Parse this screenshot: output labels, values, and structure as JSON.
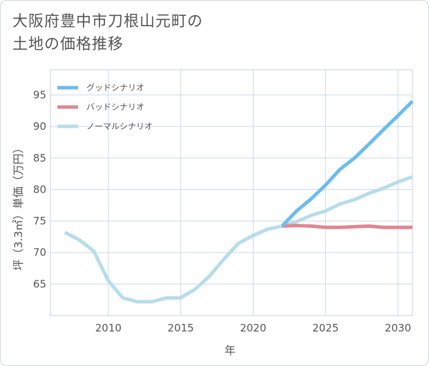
{
  "title_lines": [
    "大阪府豊中市刀根山元町の",
    "土地の価格推移"
  ],
  "chart_data": {
    "type": "line",
    "xlabel": "年",
    "ylabel": "坪（3.3㎡）単価（万円）",
    "xlim": [
      2006,
      2031
    ],
    "ylim": [
      60,
      99
    ],
    "xticks": [
      2010,
      2015,
      2020,
      2025,
      2030
    ],
    "yticks": [
      65,
      70,
      75,
      80,
      85,
      90,
      95
    ],
    "grid": true,
    "legend_position": "top-left",
    "series": [
      {
        "name": "グッドシナリオ",
        "color": "#6bbcee",
        "x": [
          2022,
          2023,
          2024,
          2025,
          2026,
          2027,
          2028,
          2029,
          2030,
          2031
        ],
        "y": [
          74.2,
          76.6,
          78.5,
          80.7,
          83.2,
          85.0,
          87.2,
          89.5,
          91.7,
          94.0
        ]
      },
      {
        "name": "バッドシナリオ",
        "color": "#e0878f",
        "x": [
          2022,
          2023,
          2024,
          2025,
          2026,
          2027,
          2028,
          2029,
          2030,
          2031
        ],
        "y": [
          74.2,
          74.3,
          74.2,
          74.0,
          74.0,
          74.1,
          74.2,
          74.0,
          74.0,
          74.0
        ]
      },
      {
        "name": "ノーマルシナリオ",
        "color": "#b7dcec",
        "x": [
          2007,
          2008,
          2009,
          2010,
          2011,
          2012,
          2013,
          2014,
          2015,
          2016,
          2017,
          2018,
          2019,
          2020,
          2021,
          2022,
          2023,
          2024,
          2025,
          2026,
          2027,
          2028,
          2029,
          2030,
          2031
        ],
        "y": [
          73.2,
          72.0,
          70.2,
          65.5,
          62.8,
          62.2,
          62.2,
          62.8,
          62.8,
          64.2,
          66.3,
          69.0,
          71.5,
          72.7,
          73.7,
          74.2,
          74.9,
          75.9,
          76.6,
          77.7,
          78.4,
          79.4,
          80.2,
          81.2,
          82.0
        ]
      }
    ]
  }
}
